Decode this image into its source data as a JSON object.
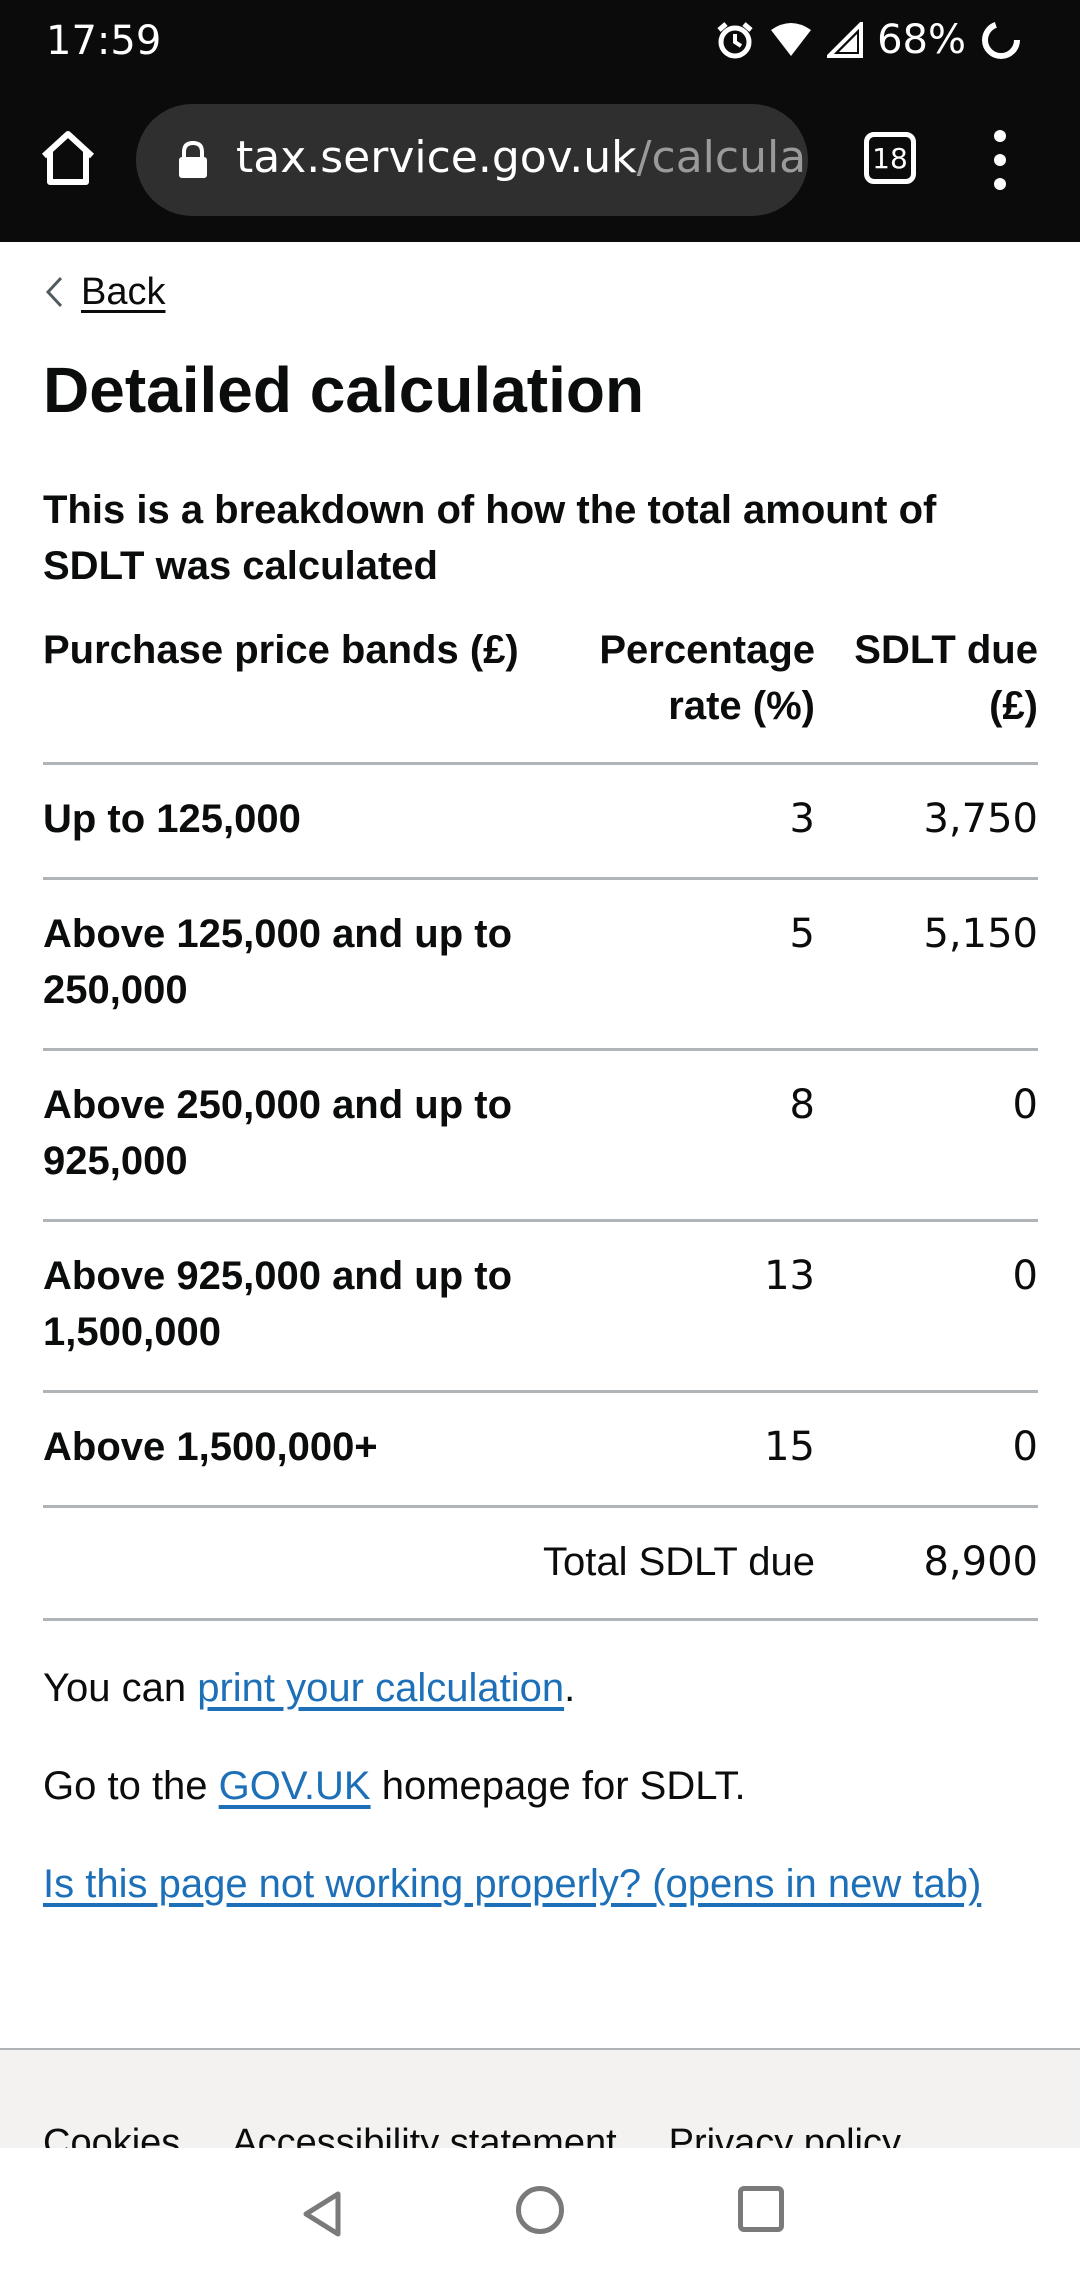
{
  "status_bar": {
    "time": "17:59",
    "battery_percent": "68%",
    "icons": [
      "alarm-icon",
      "wifi-icon",
      "signal-icon",
      "battery-icon"
    ]
  },
  "browser": {
    "url_host": "tax.service.gov.uk",
    "url_path": "/calculate-",
    "tab_count": "18"
  },
  "page": {
    "back_label": "Back",
    "title": "Detailed calculation",
    "caption": "This is a breakdown of how the total amount of SDLT was calculated",
    "table": {
      "headers": {
        "band": "Purchase price bands (£)",
        "rate": "Percentage rate (%)",
        "due": "SDLT due (£)"
      },
      "rows": [
        {
          "band": "Up to 125,000",
          "rate": "3",
          "due": "3,750"
        },
        {
          "band": "Above 125,000 and up to 250,000",
          "rate": "5",
          "due": "5,150"
        },
        {
          "band": "Above 250,000 and up to 925,000",
          "rate": "8",
          "due": "0"
        },
        {
          "band": "Above 925,000 and up to 1,500,000",
          "rate": "13",
          "due": "0"
        },
        {
          "band": "Above 1,500,000+",
          "rate": "15",
          "due": "0"
        }
      ],
      "total_label": "Total SDLT due",
      "total_value": "8,900"
    },
    "print_prefix": "You can ",
    "print_link": "print your calculation",
    "print_suffix": ".",
    "govuk_prefix": "Go to the ",
    "govuk_link": "GOV.UK",
    "govuk_suffix": " homepage for SDLT.",
    "report_link": "Is this page not working properly? (opens in new tab)"
  },
  "footer": {
    "links": [
      "Cookies",
      "Accessibility statement",
      "Privacy policy"
    ]
  },
  "colors": {
    "link": "#1d70b8",
    "text": "#0b0c0c",
    "chrome_bg": "#0b0b0b",
    "footer_bg": "#f3f2f1",
    "border": "#b1b4b6"
  }
}
